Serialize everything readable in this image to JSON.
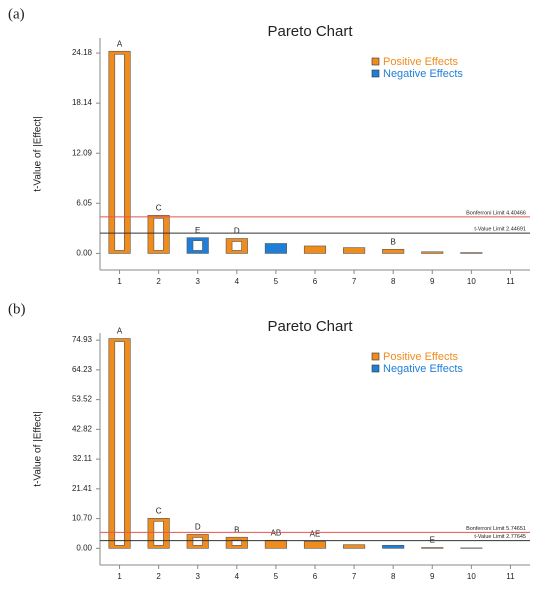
{
  "chart_data": [
    {
      "type": "bar",
      "panel": "(a)",
      "title": "Pareto Chart",
      "ylabel": "t-Value of |Effect|",
      "x": [
        1,
        2,
        3,
        4,
        5,
        6,
        7,
        8,
        9,
        10
      ],
      "values": [
        24.4,
        4.6,
        1.9,
        1.8,
        1.2,
        0.9,
        0.7,
        0.5,
        0.2,
        0.1
      ],
      "colors": [
        "#f08c1e",
        "#f08c1e",
        "#1f7fd6",
        "#f08c1e",
        "#1f7fd6",
        "#f08c1e",
        "#f08c1e",
        "#f08c1e",
        "#f08c1e",
        "#f08c1e"
      ],
      "bar_labels": [
        "A",
        "C",
        "E",
        "D",
        null,
        null,
        null,
        "B",
        null,
        null
      ],
      "xlim": [
        0.5,
        11.5
      ],
      "xticks": [
        1,
        2,
        3,
        4,
        5,
        6,
        7,
        8,
        9,
        10,
        11
      ],
      "ylim": [
        -2,
        26
      ],
      "yticks": [
        {
          "value": 0,
          "label": "0.00"
        },
        6.05,
        12.09,
        18.14,
        24.18
      ],
      "limits": [
        {
          "value": 4.40466,
          "label": "Bonferroni Limit 4.40466",
          "color": "#e8534f"
        },
        {
          "value": 2.44691,
          "label": "t-Value Limit 2.44691",
          "color": "#333333"
        }
      ],
      "legend_position": "upper right",
      "legend": [
        {
          "name": "Positive Effects",
          "color": "#f08c1e"
        },
        {
          "name": "Negative Effects",
          "color": "#1f7fd6"
        }
      ]
    },
    {
      "type": "bar",
      "panel": "(b)",
      "title": "Pareto Chart",
      "ylabel": "t-Value of |Effect|",
      "x": [
        1,
        2,
        3,
        4,
        5,
        6,
        7,
        8,
        9,
        10
      ],
      "values": [
        75.5,
        10.8,
        5.0,
        4.0,
        2.9,
        2.5,
        1.3,
        1.1,
        0.3,
        0.15
      ],
      "colors": [
        "#f08c1e",
        "#f08c1e",
        "#f08c1e",
        "#f08c1e",
        "#f08c1e",
        "#f08c1e",
        "#f08c1e",
        "#1f7fd6",
        "#f08c1e",
        "#f08c1e"
      ],
      "bar_labels": [
        "A",
        "C",
        "D",
        "B",
        "AB",
        "AE",
        null,
        null,
        "E",
        null
      ],
      "xlim": [
        0.5,
        11.5
      ],
      "xticks": [
        1,
        2,
        3,
        4,
        5,
        6,
        7,
        8,
        9,
        10,
        11
      ],
      "ylim": [
        -6,
        77.5
      ],
      "yticks": [
        {
          "value": 0,
          "label": "0.00"
        },
        {
          "value": 10.7,
          "label": "10.70"
        },
        21.41,
        32.11,
        42.82,
        53.52,
        64.23,
        74.93
      ],
      "limits": [
        {
          "value": 5.74651,
          "label": "Bonferroni Limit 5.74651",
          "color": "#e8534f"
        },
        {
          "value": 2.77645,
          "label": "t-Value Limit 2.77645",
          "color": "#333333"
        }
      ],
      "legend_position": "upper right",
      "legend": [
        {
          "name": "Positive Effects",
          "color": "#f08c1e"
        },
        {
          "name": "Negative Effects",
          "color": "#1f7fd6"
        }
      ]
    }
  ]
}
